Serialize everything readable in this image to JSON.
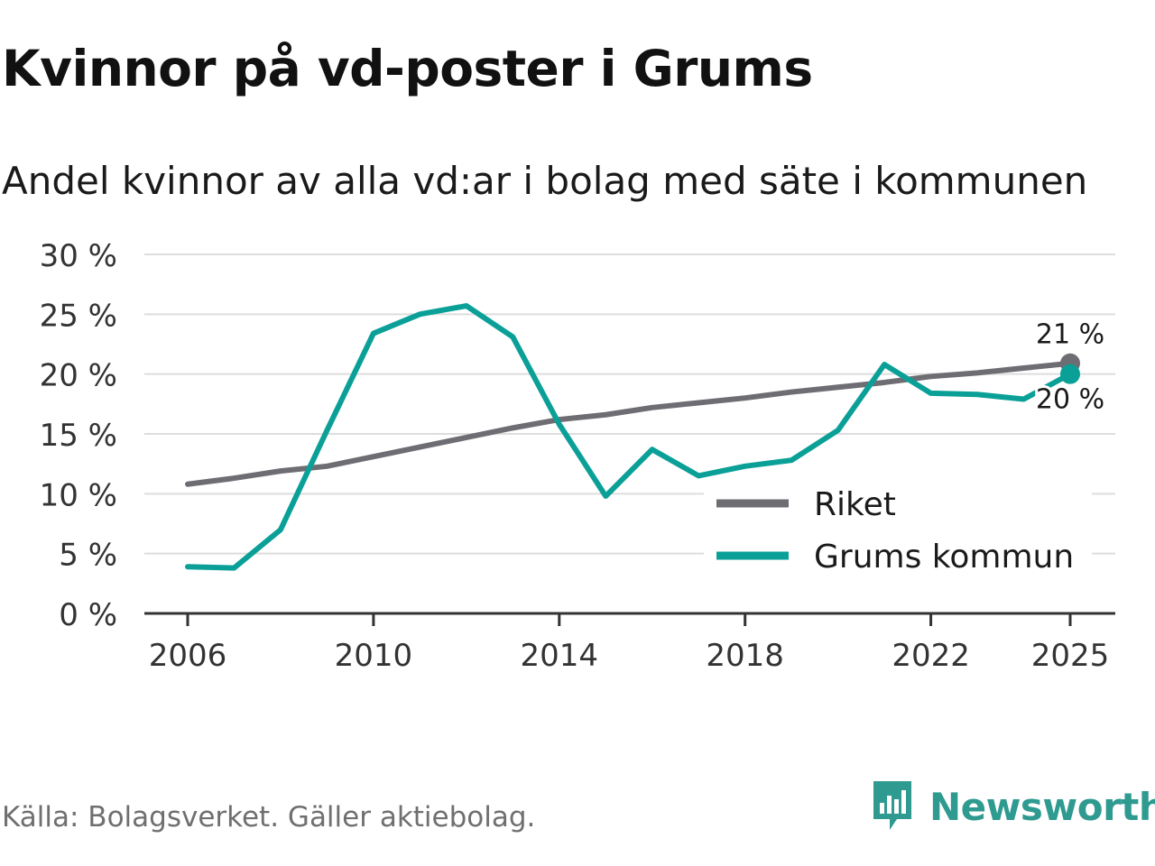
{
  "title": "Kvinnor på vd-poster i Grums",
  "subtitle": "Andel kvinnor av alla vd:ar i bolag med säte i kommunen",
  "source": "Källa: Bolagsverket. Gäller aktiebolag.",
  "brand": {
    "name": "Newsworthy",
    "icon": "newsworthy-logo-icon"
  },
  "colors": {
    "riket": "#6e6d74",
    "grums": "#0aa097",
    "grid": "#dddddd",
    "axis": "#333333"
  },
  "chart_data": {
    "type": "line",
    "title": "Kvinnor på vd-poster i Grums",
    "subtitle": "Andel kvinnor av alla vd:ar i bolag med säte i kommunen",
    "xlabel": "",
    "ylabel": "",
    "x": [
      2006,
      2007,
      2008,
      2009,
      2010,
      2011,
      2012,
      2013,
      2014,
      2015,
      2016,
      2017,
      2018,
      2019,
      2020,
      2021,
      2022,
      2023,
      2024,
      2025
    ],
    "x_ticks": [
      "2006",
      "2010",
      "2014",
      "2018",
      "2022",
      "2025"
    ],
    "y_ticks": [
      "0 %",
      "5 %",
      "10 %",
      "15 %",
      "20 %",
      "25 %",
      "30 %"
    ],
    "ylim": [
      0,
      30
    ],
    "grid": true,
    "legend_position": "bottom-right",
    "series": [
      {
        "name": "Riket",
        "values": [
          10.8,
          11.3,
          11.9,
          12.3,
          13.1,
          13.9,
          14.7,
          15.5,
          16.2,
          16.6,
          17.2,
          17.6,
          18.0,
          18.5,
          18.9,
          19.3,
          19.8,
          20.1,
          20.5,
          20.9
        ],
        "end_label": "21 %"
      },
      {
        "name": "Grums kommun",
        "values": [
          3.9,
          3.8,
          7.0,
          15.3,
          23.4,
          25.0,
          25.7,
          23.1,
          15.8,
          9.8,
          13.7,
          11.5,
          12.3,
          12.8,
          15.3,
          20.8,
          18.4,
          18.3,
          17.9,
          20.0
        ],
        "end_label": "20 %"
      }
    ]
  }
}
